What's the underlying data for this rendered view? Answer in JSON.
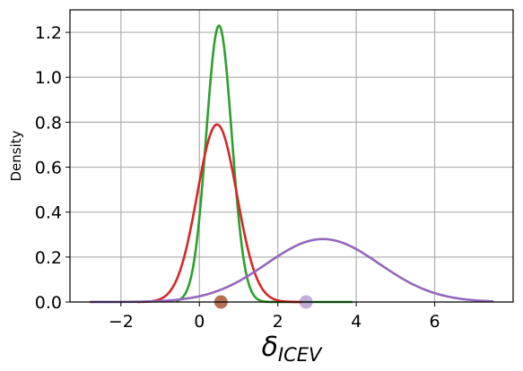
{
  "chart_data": {
    "type": "line",
    "title": "",
    "xlabel": {
      "main": "δ",
      "sub": "ICEV"
    },
    "ylabel": "Density",
    "xlim": [
      -3.3,
      8.0
    ],
    "ylim": [
      0,
      1.3
    ],
    "xticks": [
      -2,
      0,
      2,
      4,
      6
    ],
    "xtick_labels": [
      "−2",
      "0",
      "2",
      "4",
      "6"
    ],
    "yticks": [
      0,
      0.2,
      0.4,
      0.6,
      0.8,
      1.0,
      1.2
    ],
    "ytick_labels": [
      "0.0",
      "0.2",
      "0.4",
      "0.6",
      "0.8",
      "1.0",
      "1.2"
    ],
    "grid": true,
    "series": [
      {
        "color": "#2ca02c",
        "mean": 0.5,
        "sd": 0.325,
        "x_range": [
          -0.6,
          3.9
        ],
        "peak": 1.23
      },
      {
        "color": "#d62728",
        "mean": 0.45,
        "sd": 0.506,
        "x_range": [
          -1.6,
          2.6
        ],
        "peak": 0.79
      },
      {
        "color": "#9467bd",
        "mean": 3.15,
        "sd": 1.44,
        "x_range": [
          -2.8,
          7.5
        ],
        "peak": 0.28
      }
    ],
    "markers": [
      {
        "x": 2.72,
        "y": 0.0,
        "color": "#9467bd"
      },
      {
        "x": 0.55,
        "y": 0.0,
        "color": "#2ca02c"
      },
      {
        "x": 0.55,
        "y": 0.0,
        "color": "#d62728"
      }
    ]
  }
}
